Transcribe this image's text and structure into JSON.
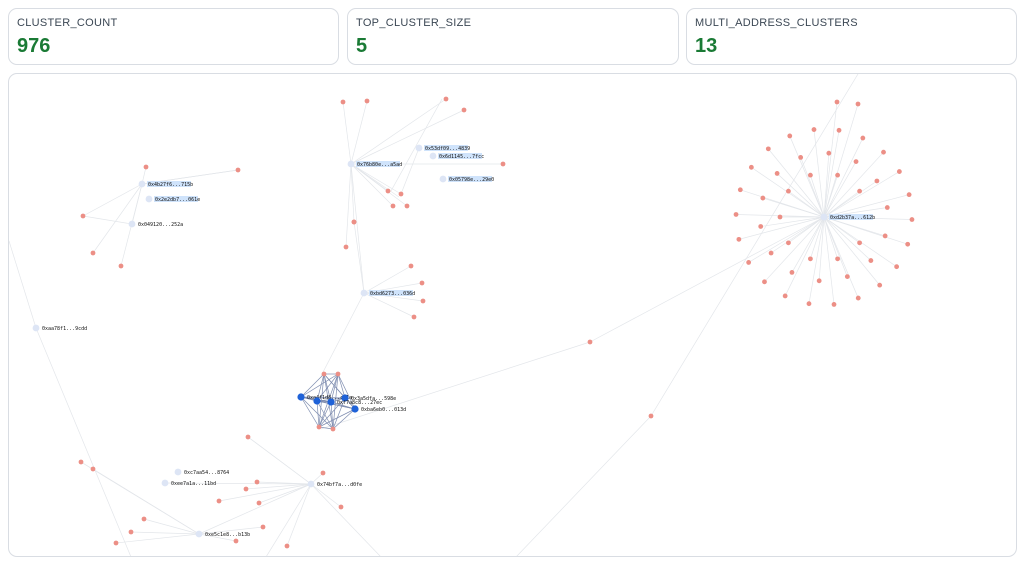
{
  "cards": [
    {
      "label": "CLUSTER_COUNT",
      "value": 976
    },
    {
      "label": "TOP_CLUSTER_SIZE",
      "value": 5
    },
    {
      "label": "MULTI_ADDRESS_CLUSTERS",
      "value": 13
    }
  ],
  "graph": {
    "nodes": [
      {
        "label": "0x4b27f6...715b"
      },
      {
        "label": "0x2e2db7...061e"
      },
      {
        "label": "0x049120...252a"
      },
      {
        "label": "0x76b80e...a5ad"
      },
      {
        "label": "0x53df09...4839"
      },
      {
        "label": "0x6d1145...7fcc"
      },
      {
        "label": "0x05798e...29e0"
      },
      {
        "label": "0xbd6273...036d"
      },
      {
        "label": "0xaa78f1...9cdd"
      },
      {
        "label": "0xd2b37a...612b"
      },
      {
        "label": "0xa4f1d8...c21a"
      },
      {
        "label": "0x3a5dfa...598e"
      },
      {
        "label": "0xf7a8c8...27ec"
      },
      {
        "label": "0xba6eb0...013d"
      },
      {
        "label": "0xc7aa54...8764"
      },
      {
        "label": "0xee7a1a...11bd"
      },
      {
        "label": "0x74bf7a...d0fe"
      },
      {
        "label": "0xe5c1e8...b13b"
      }
    ]
  }
}
